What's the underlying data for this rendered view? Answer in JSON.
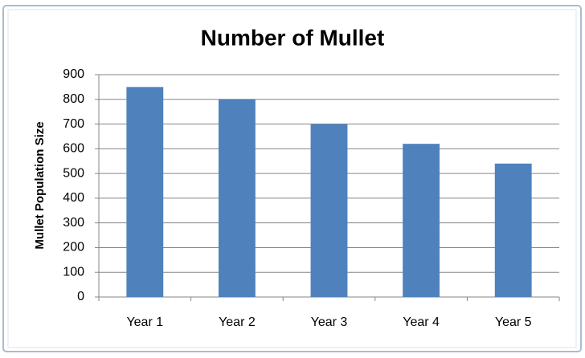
{
  "chart_data": {
    "type": "bar",
    "title": "Number of Mullet",
    "y_label": "Mullet Population Size",
    "categories": [
      "Year 1",
      "Year 2",
      "Year 3",
      "Year 4",
      "Year 5"
    ],
    "values": [
      850,
      800,
      700,
      620,
      540
    ],
    "color": "#4f81bd",
    "ylim": [
      0,
      900
    ],
    "yticks": [
      0,
      100,
      200,
      300,
      400,
      500,
      600,
      700,
      800,
      900
    ],
    "grid": true
  }
}
